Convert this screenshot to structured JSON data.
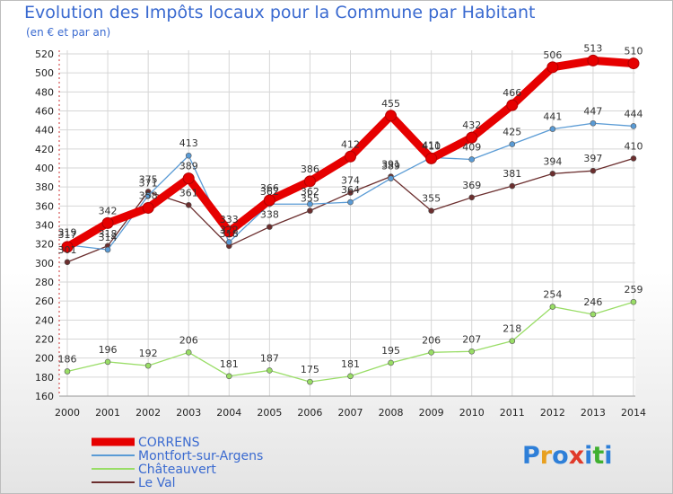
{
  "chart_data": {
    "type": "line",
    "title": "Evolution des Impôts locaux pour la Commune par Habitant",
    "subtitle": "(en € et par an)",
    "x": [
      "2000",
      "2001",
      "2002",
      "2003",
      "2004",
      "2005",
      "2006",
      "2007",
      "2008",
      "2009",
      "2010",
      "2011",
      "2012",
      "2013",
      "2014"
    ],
    "ylim": [
      160,
      520
    ],
    "yticks": [
      160,
      180,
      200,
      220,
      240,
      260,
      280,
      300,
      320,
      340,
      360,
      380,
      400,
      420,
      440,
      460,
      480,
      500,
      520
    ],
    "grid": true,
    "legend_position": "bottom-left",
    "series": [
      {
        "name": "CORRENS",
        "color": "#e60000",
        "values": [
          317,
          342,
          358,
          389,
          333,
          366,
          386,
          412,
          455,
          410,
          432,
          466,
          506,
          513,
          510
        ]
      },
      {
        "name": "Montfort-sur-Argens",
        "color": "#5a9bd5",
        "values": [
          319,
          314,
          371,
          413,
          322,
          362,
          362,
          364,
          389,
          411,
          409,
          425,
          441,
          447,
          444
        ]
      },
      {
        "name": "Châteauvert",
        "color": "#99dd66",
        "values": [
          186,
          196,
          192,
          206,
          181,
          187,
          175,
          181,
          195,
          206,
          207,
          218,
          254,
          246,
          259
        ]
      },
      {
        "name": "Le Val",
        "color": "#6b2e2e",
        "values": [
          301,
          318,
          375,
          361,
          318,
          338,
          355,
          374,
          391,
          355,
          369,
          381,
          394,
          397,
          410
        ]
      }
    ]
  },
  "logo": {
    "letters": [
      "P",
      "r",
      "o",
      "x",
      "i",
      "t",
      "i"
    ],
    "colors": [
      "#2e7fd8",
      "#e8a020",
      "#2e7fd8",
      "#e03a2a",
      "#2e7fd8",
      "#40b030",
      "#2e7fd8"
    ]
  }
}
